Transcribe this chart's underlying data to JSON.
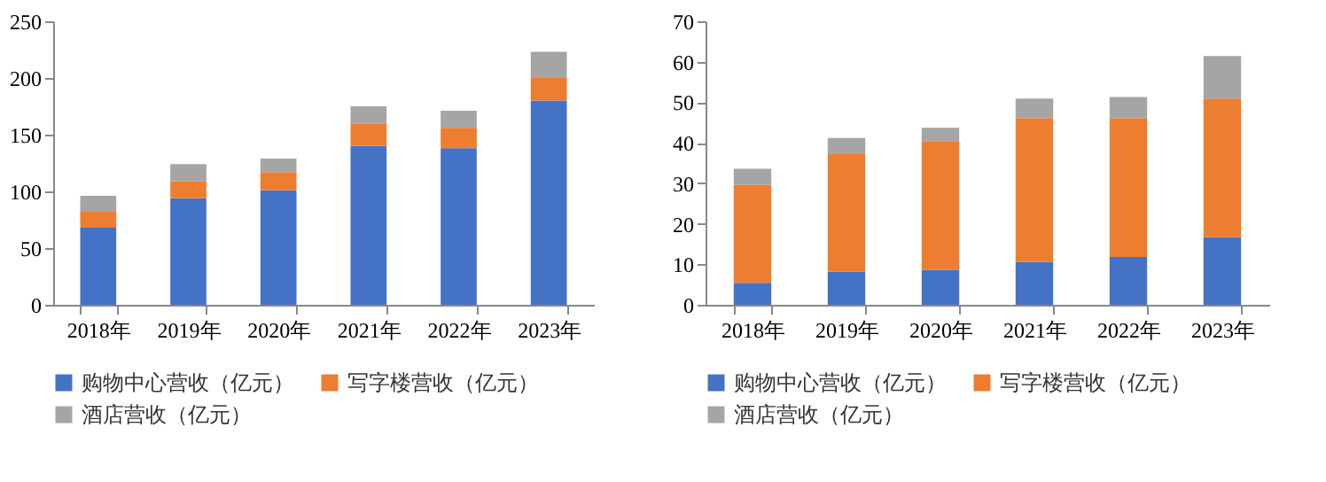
{
  "chart_data": [
    {
      "type": "bar",
      "stacked": true,
      "grid": false,
      "legend": "bottom",
      "categories": [
        "2018年",
        "2019年",
        "2020年",
        "2021年",
        "2022年",
        "2023年"
      ],
      "ylim": [
        0,
        250
      ],
      "yticks": [
        0,
        50,
        100,
        150,
        200,
        250
      ],
      "series": [
        {
          "name": "购物中心营收（亿元）",
          "color": "#4472c4",
          "values": [
            68,
            94,
            101,
            140,
            138,
            180
          ]
        },
        {
          "name": "写字楼营收（亿元）",
          "color": "#ed7d31",
          "values": [
            14,
            15,
            16,
            20,
            18,
            20
          ]
        },
        {
          "name": "酒店营收（亿元）",
          "color": "#a5a5a5",
          "values": [
            14,
            15,
            12,
            15,
            15,
            23
          ]
        }
      ]
    },
    {
      "type": "bar",
      "stacked": true,
      "grid": false,
      "legend": "bottom",
      "categories": [
        "2018年",
        "2019年",
        "2020年",
        "2021年",
        "2022年",
        "2023年"
      ],
      "ylim": [
        0,
        70
      ],
      "yticks": [
        0,
        10,
        20,
        30,
        40,
        50,
        60,
        70
      ],
      "series": [
        {
          "name": "购物中心营收（亿元）",
          "color": "#4472c4",
          "values": [
            5.4,
            8.2,
            8.6,
            10.6,
            11.8,
            16.7
          ]
        },
        {
          "name": "写字楼营收（亿元）",
          "color": "#ed7d31",
          "values": [
            24.2,
            29,
            31.8,
            35.5,
            34.3,
            34.2
          ]
        },
        {
          "name": "酒店营收（亿元）",
          "color": "#a5a5a5",
          "values": [
            4,
            4,
            3.3,
            4.8,
            5.2,
            10.5
          ]
        }
      ]
    }
  ]
}
